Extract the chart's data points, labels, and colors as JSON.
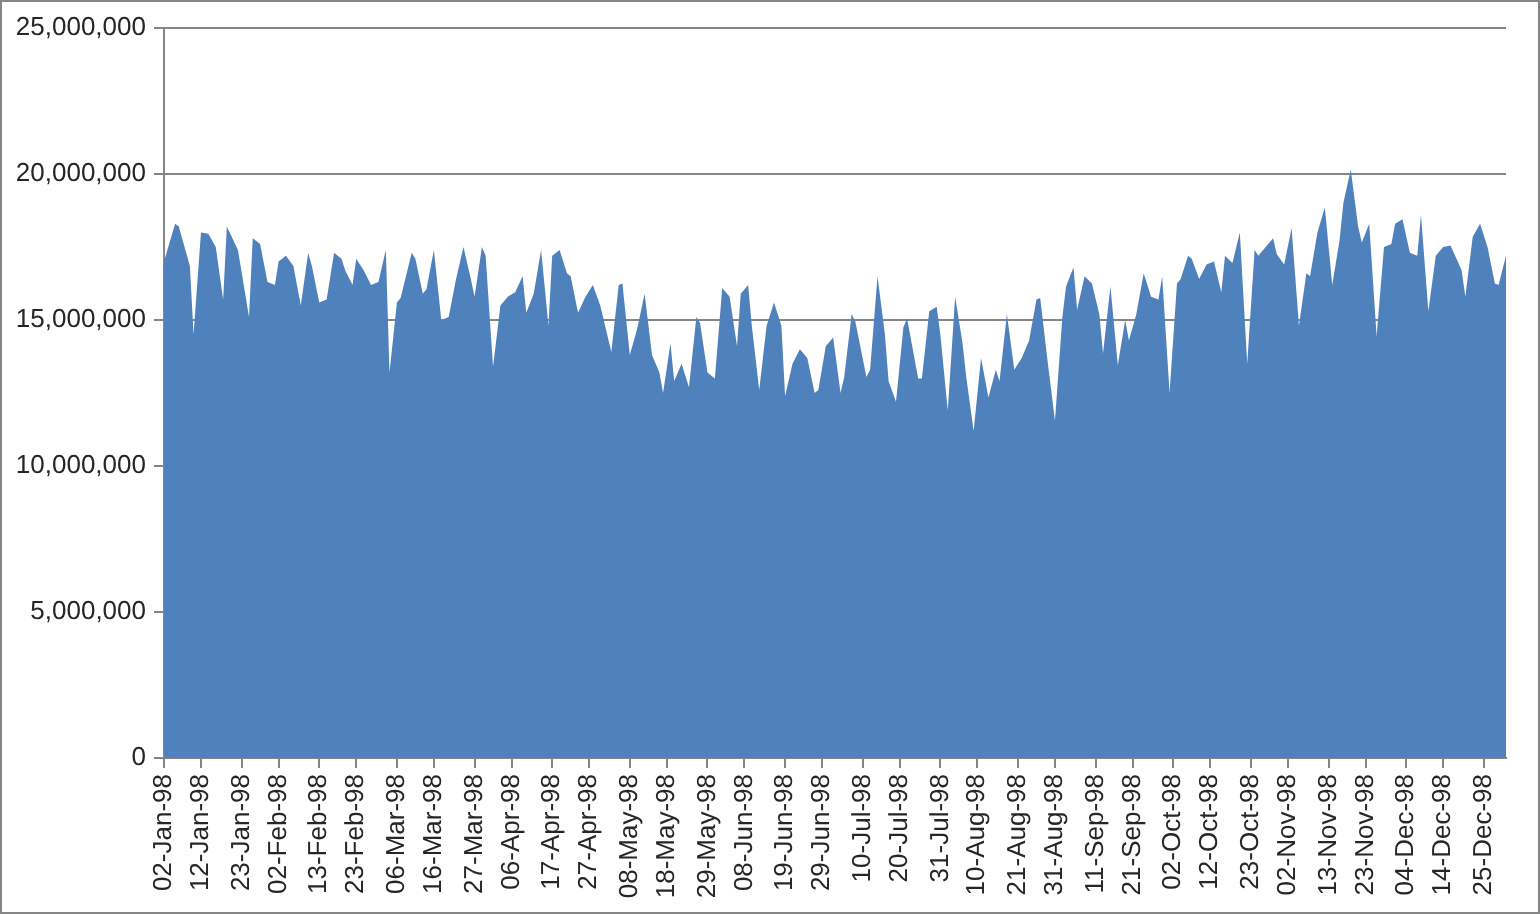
{
  "chart_data": {
    "type": "area",
    "color": "#4f81bd",
    "x": [
      "1998-01-02",
      "1998-01-05",
      "1998-01-06",
      "1998-01-09",
      "1998-01-10",
      "1998-01-12",
      "1998-01-14",
      "1998-01-16",
      "1998-01-18",
      "1998-01-19",
      "1998-01-22",
      "1998-01-25",
      "1998-01-26",
      "1998-01-28",
      "1998-01-30",
      "1998-02-01",
      "1998-02-02",
      "1998-02-04",
      "1998-02-06",
      "1998-02-08",
      "1998-02-10",
      "1998-02-11",
      "1998-02-13",
      "1998-02-15",
      "1998-02-17",
      "1998-02-19",
      "1998-02-20",
      "1998-02-22",
      "1998-02-23",
      "1998-02-25",
      "1998-02-27",
      "1998-03-01",
      "1998-03-03",
      "1998-03-04",
      "1998-03-06",
      "1998-03-07",
      "1998-03-10",
      "1998-03-11",
      "1998-03-13",
      "1998-03-14",
      "1998-03-16",
      "1998-03-18",
      "1998-03-20",
      "1998-03-22",
      "1998-03-24",
      "1998-03-26",
      "1998-03-27",
      "1998-03-29",
      "1998-03-30",
      "1998-04-01",
      "1998-04-03",
      "1998-04-05",
      "1998-04-07",
      "1998-04-09",
      "1998-04-10",
      "1998-04-12",
      "1998-04-14",
      "1998-04-16",
      "1998-04-17",
      "1998-04-19",
      "1998-04-21",
      "1998-04-22",
      "1998-04-24",
      "1998-04-26",
      "1998-04-28",
      "1998-04-30",
      "1998-05-03",
      "1998-05-05",
      "1998-05-06",
      "1998-05-08",
      "1998-05-10",
      "1998-05-12",
      "1998-05-14",
      "1998-05-16",
      "1998-05-17",
      "1998-05-19",
      "1998-05-20",
      "1998-05-22",
      "1998-05-24",
      "1998-05-26",
      "1998-05-27",
      "1998-05-29",
      "1998-05-31",
      "1998-06-02",
      "1998-06-04",
      "1998-06-06",
      "1998-06-07",
      "1998-06-09",
      "1998-06-10",
      "1998-06-12",
      "1998-06-14",
      "1998-06-16",
      "1998-06-18",
      "1998-06-19",
      "1998-06-21",
      "1998-06-23",
      "1998-06-25",
      "1998-06-27",
      "1998-06-28",
      "1998-06-30",
      "1998-07-02",
      "1998-07-04",
      "1998-07-05",
      "1998-07-07",
      "1998-07-08",
      "1998-07-11",
      "1998-07-12",
      "1998-07-14",
      "1998-07-16",
      "1998-07-17",
      "1998-07-19",
      "1998-07-21",
      "1998-07-22",
      "1998-07-25",
      "1998-07-26",
      "1998-07-28",
      "1998-07-30",
      "1998-07-31",
      "1998-08-02",
      "1998-08-04",
      "1998-08-06",
      "1998-08-07",
      "1998-08-09",
      "1998-08-11",
      "1998-08-13",
      "1998-08-15",
      "1998-08-16",
      "1998-08-18",
      "1998-08-20",
      "1998-08-22",
      "1998-08-24",
      "1998-08-26",
      "1998-08-27",
      "1998-08-29",
      "1998-08-31",
      "1998-09-02",
      "1998-09-03",
      "1998-09-05",
      "1998-09-06",
      "1998-09-08",
      "1998-09-10",
      "1998-09-12",
      "1998-09-13",
      "1998-09-15",
      "1998-09-17",
      "1998-09-19",
      "1998-09-20",
      "1998-09-22",
      "1998-09-24",
      "1998-09-26",
      "1998-09-28",
      "1998-09-29",
      "1998-10-01",
      "1998-10-03",
      "1998-10-04",
      "1998-10-06",
      "1998-10-07",
      "1998-10-09",
      "1998-10-11",
      "1998-10-13",
      "1998-10-15",
      "1998-10-16",
      "1998-10-18",
      "1998-10-20",
      "1998-10-22",
      "1998-10-24",
      "1998-10-25",
      "1998-10-27",
      "1998-10-29",
      "1998-10-30",
      "1998-11-01",
      "1998-11-03",
      "1998-11-05",
      "1998-11-07",
      "1998-11-08",
      "1998-11-10",
      "1998-11-12",
      "1998-11-14",
      "1998-11-16",
      "1998-11-17",
      "1998-11-19",
      "1998-11-21",
      "1998-11-22",
      "1998-11-24",
      "1998-11-26",
      "1998-11-28",
      "1998-11-30",
      "1998-12-01",
      "1998-12-03",
      "1998-12-05",
      "1998-12-07",
      "1998-12-08",
      "1998-12-10",
      "1998-12-12",
      "1998-12-14",
      "1998-12-16",
      "1998-12-19",
      "1998-12-20",
      "1998-12-22",
      "1998-12-24",
      "1998-12-26",
      "1998-12-28",
      "1998-12-29",
      "1998-12-31"
    ],
    "values": [
      17000000,
      18300000,
      18200000,
      16850000,
      14500000,
      18000000,
      17950000,
      17500000,
      15700000,
      18200000,
      17400000,
      15100000,
      17800000,
      17600000,
      16300000,
      16200000,
      17000000,
      17200000,
      16850000,
      15500000,
      17300000,
      16850000,
      15600000,
      15700000,
      17300000,
      17100000,
      16700000,
      16200000,
      17100000,
      16700000,
      16200000,
      16300000,
      17400000,
      13200000,
      15600000,
      15750000,
      17300000,
      17100000,
      15900000,
      16050000,
      17400000,
      15000000,
      15100000,
      16400000,
      17500000,
      16400000,
      15800000,
      17500000,
      17200000,
      13400000,
      15500000,
      15800000,
      15950000,
      16500000,
      15250000,
      15900000,
      17400000,
      14800000,
      17200000,
      17400000,
      16600000,
      16500000,
      15250000,
      15800000,
      16200000,
      15500000,
      13900000,
      16200000,
      16250000,
      13800000,
      14700000,
      15900000,
      13800000,
      13200000,
      12500000,
      14200000,
      12900000,
      13500000,
      12700000,
      15100000,
      14900000,
      13200000,
      13000000,
      16100000,
      15800000,
      14100000,
      15900000,
      16200000,
      14800000,
      12600000,
      14800000,
      15600000,
      14800000,
      12400000,
      13500000,
      14000000,
      13700000,
      12500000,
      12600000,
      14100000,
      14400000,
      12500000,
      13050000,
      15200000,
      14950000,
      13050000,
      13300000,
      16500000,
      14500000,
      12900000,
      12200000,
      14750000,
      15050000,
      13000000,
      13000000,
      15300000,
      15450000,
      14500000,
      11900000,
      15800000,
      14200000,
      13050000,
      11200000,
      13700000,
      12350000,
      13300000,
      12900000,
      15200000,
      13300000,
      13700000,
      14300000,
      15700000,
      15750000,
      13600000,
      11550000,
      15100000,
      16150000,
      16800000,
      15350000,
      16500000,
      16250000,
      15200000,
      13850000,
      16150000,
      13450000,
      15000000,
      14300000,
      15200000,
      16600000,
      15800000,
      15700000,
      16500000,
      12500000,
      16250000,
      16400000,
      17200000,
      17100000,
      16400000,
      16900000,
      17000000,
      15950000,
      17200000,
      16950000,
      18000000,
      13500000,
      17400000,
      17200000,
      17500000,
      17800000,
      17250000,
      16900000,
      18150000,
      14800000,
      16600000,
      16500000,
      18000000,
      18850000,
      16200000,
      17750000,
      19000000,
      20150000,
      18200000,
      17650000,
      18300000,
      14450000,
      17500000,
      17600000,
      18300000,
      18450000,
      17300000,
      17200000,
      18600000,
      15300000,
      17200000,
      17500000,
      17550000,
      16700000,
      15800000,
      17850000,
      18300000,
      17500000,
      16250000,
      16200000,
      17200000
    ],
    "xlim": [
      "1998-01-02",
      "1998-12-31"
    ],
    "xticks": [
      {
        "value": "1998-01-02",
        "label": "02-Jan-98"
      },
      {
        "value": "1998-01-12",
        "label": "12-Jan-98"
      },
      {
        "value": "1998-01-23",
        "label": "23-Jan-98"
      },
      {
        "value": "1998-02-02",
        "label": "02-Feb-98"
      },
      {
        "value": "1998-02-13",
        "label": "13-Feb-98"
      },
      {
        "value": "1998-02-23",
        "label": "23-Feb-98"
      },
      {
        "value": "1998-03-06",
        "label": "06-Mar-98"
      },
      {
        "value": "1998-03-16",
        "label": "16-Mar-98"
      },
      {
        "value": "1998-03-27",
        "label": "27-Mar-98"
      },
      {
        "value": "1998-04-06",
        "label": "06-Apr-98"
      },
      {
        "value": "1998-04-17",
        "label": "17-Apr-98"
      },
      {
        "value": "1998-04-27",
        "label": "27-Apr-98"
      },
      {
        "value": "1998-05-08",
        "label": "08-May-98"
      },
      {
        "value": "1998-05-18",
        "label": "18-May-98"
      },
      {
        "value": "1998-05-29",
        "label": "29-May-98"
      },
      {
        "value": "1998-06-08",
        "label": "08-Jun-98"
      },
      {
        "value": "1998-06-19",
        "label": "19-Jun-98"
      },
      {
        "value": "1998-06-29",
        "label": "29-Jun-98"
      },
      {
        "value": "1998-07-10",
        "label": "10-Jul-98"
      },
      {
        "value": "1998-07-20",
        "label": "20-Jul-98"
      },
      {
        "value": "1998-07-31",
        "label": "31-Jul-98"
      },
      {
        "value": "1998-08-10",
        "label": "10-Aug-98"
      },
      {
        "value": "1998-08-21",
        "label": "21-Aug-98"
      },
      {
        "value": "1998-08-31",
        "label": "31-Aug-98"
      },
      {
        "value": "1998-09-11",
        "label": "11-Sep-98"
      },
      {
        "value": "1998-09-21",
        "label": "21-Sep-98"
      },
      {
        "value": "1998-10-02",
        "label": "02-Oct-98"
      },
      {
        "value": "1998-10-12",
        "label": "12-Oct-98"
      },
      {
        "value": "1998-10-23",
        "label": "23-Oct-98"
      },
      {
        "value": "1998-11-02",
        "label": "02-Nov-98"
      },
      {
        "value": "1998-11-13",
        "label": "13-Nov-98"
      },
      {
        "value": "1998-11-23",
        "label": "23-Nov-98"
      },
      {
        "value": "1998-12-04",
        "label": "04-Dec-98"
      },
      {
        "value": "1998-12-14",
        "label": "14-Dec-98"
      },
      {
        "value": "1998-12-25",
        "label": "25-Dec-98"
      }
    ],
    "ylim": [
      0,
      25000000
    ],
    "yticks": [
      0,
      {
        "value": 5000000,
        "label": "5,000,000"
      },
      {
        "value": 10000000,
        "label": "10,000,000"
      },
      {
        "value": 15000000,
        "label": "15,000,000"
      },
      {
        "value": 20000000,
        "label": "20,000,000"
      },
      {
        "value": 25000000,
        "label": "25,000,000"
      }
    ],
    "grid": "y"
  }
}
